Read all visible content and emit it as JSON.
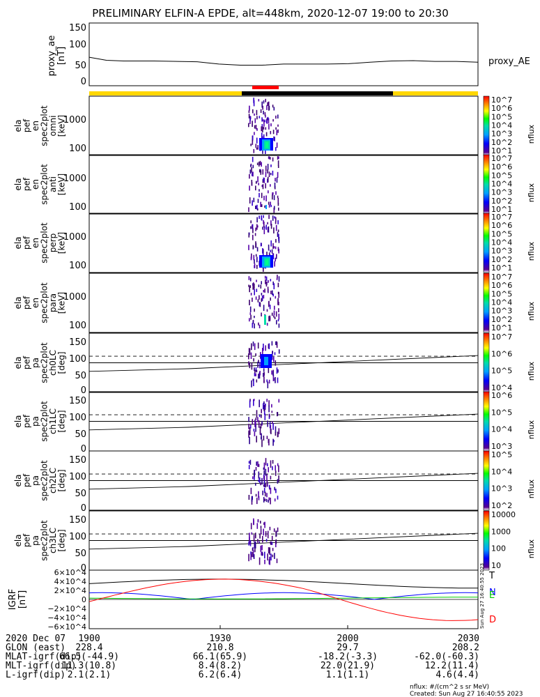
{
  "title": "PRELIMINARY ELFIN-A EPDE, alt=448km, 2020-12-07 19:00 to 20:30",
  "chart_data": [
    {
      "type": "line",
      "panel": "proxy_ae",
      "ylabel_lines": [
        "proxy_ae",
        "[nT]"
      ],
      "series_label": "proxy_AE",
      "yticks": [
        "150",
        "100",
        "50",
        "0"
      ],
      "ylim": [
        -10,
        155
      ],
      "x": [
        0,
        4,
        8,
        15,
        25,
        30,
        35,
        40,
        45,
        50,
        55,
        60,
        65,
        70,
        75,
        80,
        85,
        90
      ],
      "y": [
        65,
        57,
        55,
        55,
        53,
        47,
        44,
        44,
        47,
        47,
        47,
        48,
        52,
        55,
        56,
        54,
        54,
        52
      ]
    },
    {
      "type": "heatmap",
      "panel": "spec2plot_omni",
      "ylabel_lines": [
        "ela",
        "pef",
        "en",
        "spec2plot",
        "omni",
        "[keV]"
      ],
      "yticks": [
        "1000",
        "100"
      ],
      "zlabel": "nflux",
      "zticks": [
        "10^7",
        "10^6",
        "10^5",
        "10^4",
        "10^3",
        "10^2",
        "10^1"
      ]
    },
    {
      "type": "heatmap",
      "panel": "spec2plot_anti",
      "ylabel_lines": [
        "ela",
        "pef",
        "en",
        "spec2plot",
        "anti",
        "[keV]"
      ],
      "yticks": [
        "1000",
        "100"
      ],
      "zlabel": "nflux",
      "zticks": [
        "10^7",
        "10^6",
        "10^5",
        "10^4",
        "10^3",
        "10^2",
        "10^1"
      ]
    },
    {
      "type": "heatmap",
      "panel": "spec2plot_perp",
      "ylabel_lines": [
        "ela",
        "pef",
        "en",
        "spec2plot",
        "perp",
        "[keV]"
      ],
      "yticks": [
        "1000",
        "100"
      ],
      "zlabel": "nflux",
      "zticks": [
        "10^7",
        "10^6",
        "10^5",
        "10^4",
        "10^3",
        "10^2",
        "10^1"
      ]
    },
    {
      "type": "heatmap",
      "panel": "spec2plot_para",
      "ylabel_lines": [
        "ela",
        "pef",
        "en",
        "spec2plot",
        "para",
        "[keV]"
      ],
      "yticks": [
        "1000",
        "100"
      ],
      "zlabel": "nflux",
      "zticks": [
        "10^7",
        "10^6",
        "10^5",
        "10^4",
        "10^3",
        "10^2",
        "10^1"
      ]
    },
    {
      "type": "heatmap",
      "panel": "spec2plot_ch0LC",
      "ylabel_lines": [
        "ela",
        "pef",
        "pa",
        "spec2plot",
        "ch0LC",
        "[deg]"
      ],
      "yticks": [
        "150",
        "100",
        "50",
        "0"
      ],
      "ylim": [
        0,
        180
      ],
      "zlabel": "nflux",
      "zticks": [
        "10^7",
        "10^6",
        "10^5",
        "10^4"
      ]
    },
    {
      "type": "heatmap",
      "panel": "spec2plot_ch1LC",
      "ylabel_lines": [
        "ela",
        "pef",
        "pa",
        "spec2plot",
        "ch1LC",
        "[deg]"
      ],
      "yticks": [
        "150",
        "100",
        "50",
        "0"
      ],
      "ylim": [
        0,
        180
      ],
      "zlabel": "nflux",
      "zticks": [
        "10^6",
        "10^5",
        "10^4",
        "10^3"
      ]
    },
    {
      "type": "heatmap",
      "panel": "spec2plot_ch2LC",
      "ylabel_lines": [
        "ela",
        "pef",
        "pa",
        "spec2plot",
        "ch2LC",
        "[deg]"
      ],
      "yticks": [
        "150",
        "100",
        "50",
        "0"
      ],
      "ylim": [
        0,
        180
      ],
      "zlabel": "nflux",
      "zticks": [
        "10^5",
        "10^4",
        "10^3",
        "10^2"
      ]
    },
    {
      "type": "heatmap",
      "panel": "spec2plot_ch3LC",
      "ylabel_lines": [
        "ela",
        "pef",
        "pa",
        "spec2plot",
        "ch3LC",
        "[deg]"
      ],
      "yticks": [
        "150",
        "100",
        "50",
        "0"
      ],
      "ylim": [
        0,
        180
      ],
      "zlabel": "nflux",
      "zticks": [
        "10000",
        "1000",
        "100",
        "10"
      ]
    },
    {
      "type": "line",
      "panel": "igrf",
      "ylabel_lines": [
        "IGRF",
        "[nT]"
      ],
      "yticks": [
        "6×10^4",
        "4×10^4",
        "2×10^4",
        "0",
        "−2×10^4",
        "−4×10^4",
        "−6×10^4"
      ],
      "ylim": [
        -65000,
        65000
      ],
      "series": [
        {
          "name": "T",
          "color": "#000000"
        },
        {
          "name": "N",
          "color": "#0000ff"
        },
        {
          "name": "E",
          "color": "#00cc00"
        },
        {
          "name": "D",
          "color": "#ff0000"
        }
      ],
      "side_text": "Sun Aug 27 16:40:55 2023"
    }
  ],
  "footer": {
    "rows": [
      {
        "label": "2020 Dec 07",
        "values": [
          "1900",
          "1930",
          "2000",
          "2030"
        ]
      },
      {
        "label": "GLON (east)",
        "values": [
          "228.4",
          "210.8",
          "29.7",
          "208.2"
        ]
      },
      {
        "label": "MLAT-igrf(dip)",
        "values": [
          "66.5(-44.9)",
          "66.1(65.9)",
          "-18.2(-3.3)",
          "-62.0(-60.3)"
        ]
      },
      {
        "label": "MLT-igrf(dip)",
        "values": [
          "11.3(10.8)",
          "8.4(8.2)",
          "22.0(21.9)",
          "12.2(11.4)"
        ]
      },
      {
        "label": "L-igrf(dip)",
        "values": [
          "2.1(2.1)",
          "6.2(6.4)",
          "1.1(1.1)",
          "4.6(4.4)"
        ]
      }
    ],
    "nflux_note": "nflux: #/(cm^2 s sr MeV)",
    "created": "Created: Sun Aug 27 16:40:55 2023"
  }
}
